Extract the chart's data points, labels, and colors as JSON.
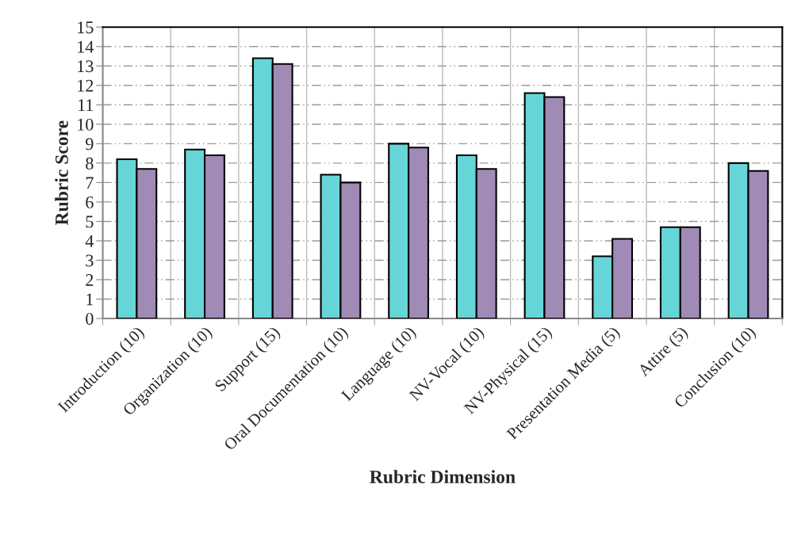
{
  "chart_data": {
    "type": "bar",
    "xlabel": "Rubric Dimension",
    "ylabel": "Rubric Score",
    "categories": [
      "Introduction (10)",
      "Organization (10)",
      "Support (15)",
      "Oral Documentation (10)",
      "Language (10)",
      "NV-Vocal (10)",
      "NV-Physical (15)",
      "Presentation Media (5)",
      "Attire (5)",
      "Conclusion (10)"
    ],
    "series": [
      {
        "color": "#66d5d8",
        "values": [
          8.2,
          8.7,
          13.4,
          7.4,
          9.0,
          8.4,
          11.6,
          3.2,
          4.7,
          8.0
        ]
      },
      {
        "color": "#a08ab6",
        "values": [
          7.7,
          8.4,
          13.1,
          7.0,
          8.8,
          7.7,
          11.4,
          4.1,
          4.7,
          7.6
        ]
      }
    ],
    "ylim": [
      0,
      15
    ],
    "yticks": [
      0,
      1,
      2,
      3,
      4,
      5,
      6,
      7,
      8,
      9,
      10,
      11,
      12,
      13,
      14,
      15
    ],
    "grid": true,
    "legend": false
  }
}
